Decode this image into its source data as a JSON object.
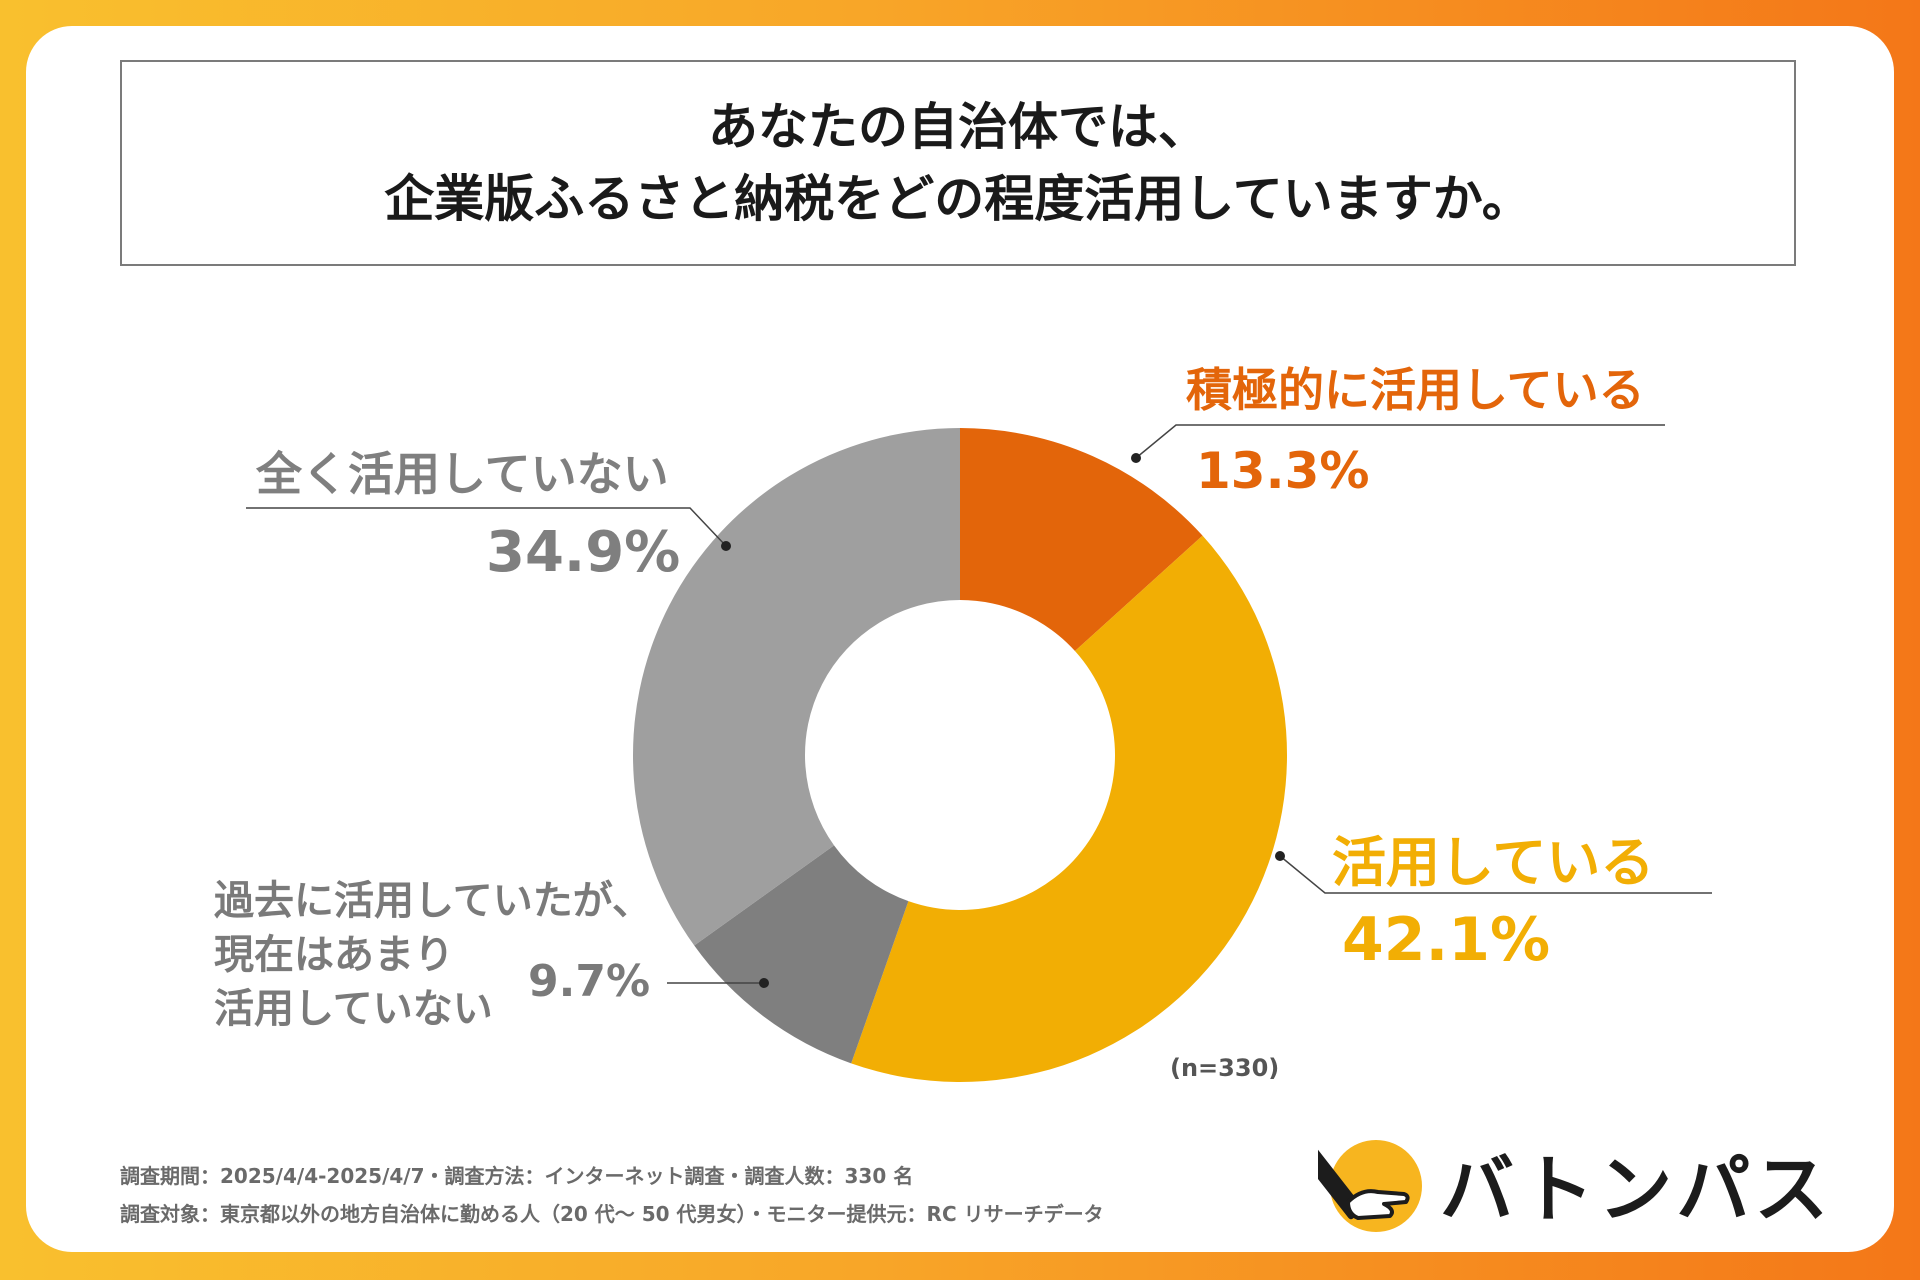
{
  "title": {
    "line1": "あなたの自治体では、",
    "line2": "企業版ふるさと納税をどの程度活用していますか。"
  },
  "chart_data": {
    "type": "pie",
    "variant": "donut",
    "title": "あなたの自治体では、企業版ふるさと納税をどの程度活用していますか。",
    "n_label": "(n=330)",
    "slices": [
      {
        "label": "積極的に活用している",
        "value": 13.3,
        "pct_label": "13.3%",
        "color": "#e3650a",
        "label_color": "#e3650a"
      },
      {
        "label": "活用している",
        "value": 42.1,
        "pct_label": "42.1%",
        "color": "#f2ae04",
        "label_color": "#f2ae04"
      },
      {
        "label_lines": [
          "過去に活用していたが、",
          "現在はあまり",
          "活用していない"
        ],
        "label": "過去に活用していたが、現在はあまり活用していない",
        "value": 9.7,
        "pct_label": "9.7%",
        "color": "#7f7f7f",
        "label_color": "#7a7a7a"
      },
      {
        "label": "全く活用していない",
        "value": 34.9,
        "pct_label": "34.9%",
        "color": "#9f9f9f",
        "label_color": "#7f7f7f"
      }
    ]
  },
  "footer": {
    "line1": "調査期間：2025/4/4-2025/4/7・調査方法：インターネット調査・調査人数：330 名",
    "line2": "調査対象：東京都以外の地方自治体に勤める人（20 代〜 50 代男女）・モニター提供元：RC リサーチデータ"
  },
  "brand": {
    "name": "バトンパス",
    "logo_icon": "baton-hand-icon",
    "logo_color": "#f7b51f"
  }
}
